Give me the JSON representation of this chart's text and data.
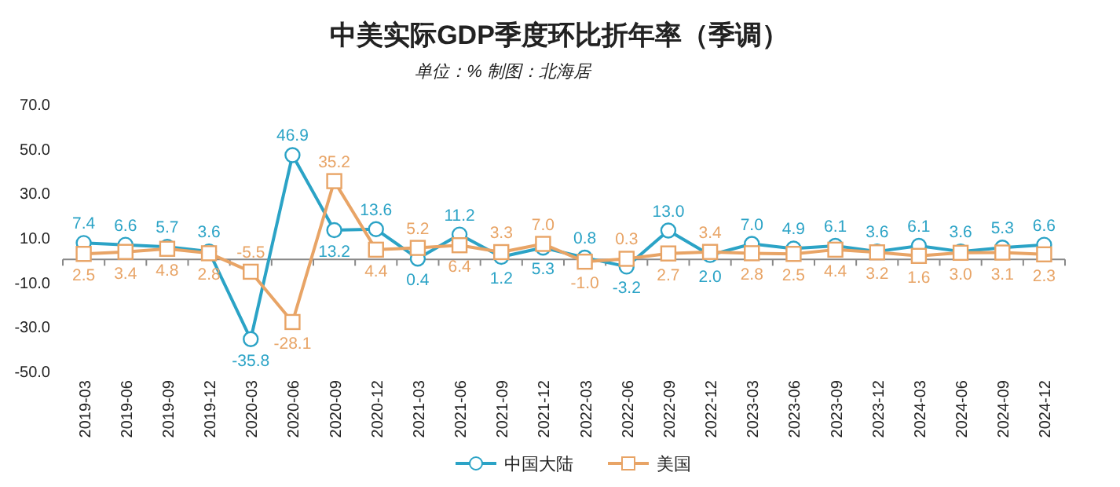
{
  "chart_data": {
    "type": "line",
    "title": "中美实际GDP季度环比折年率（季调）",
    "subtitle": "单位：% 制图：北海居",
    "categories": [
      "2019-03",
      "2019-06",
      "2019-09",
      "2019-12",
      "2020-03",
      "2020-06",
      "2020-09",
      "2020-12",
      "2021-03",
      "2021-06",
      "2021-09",
      "2021-12",
      "2022-03",
      "2022-06",
      "2022-09",
      "2022-12",
      "2023-03",
      "2023-06",
      "2023-09",
      "2023-12",
      "2024-03",
      "2024-06",
      "2024-09",
      "2024-12"
    ],
    "series": [
      {
        "name": "中国大陆",
        "color": "#2ba3c6",
        "marker": "circle",
        "values": [
          7.4,
          6.6,
          5.7,
          3.6,
          -35.8,
          46.9,
          13.2,
          13.6,
          0.4,
          11.2,
          1.2,
          5.3,
          0.8,
          -3.2,
          13.0,
          2.0,
          7.0,
          4.9,
          6.1,
          3.6,
          6.1,
          3.6,
          5.3,
          6.6
        ],
        "value_labels": [
          "7.4",
          "6.6",
          "5.7",
          "3.6",
          "-35.8",
          "46.9",
          "13.2",
          "13.6",
          "0.4",
          "11.2",
          "1.2",
          "5.3",
          "0.8",
          "-3.2",
          "13.0",
          "2.0",
          "7.0",
          "4.9",
          "6.1",
          "3.6",
          "6.1",
          "3.6",
          "5.3",
          "6.6"
        ]
      },
      {
        "name": "美国",
        "color": "#e8a466",
        "marker": "square",
        "values": [
          2.5,
          3.4,
          4.8,
          2.8,
          -5.5,
          -28.1,
          35.2,
          4.4,
          5.2,
          6.4,
          3.3,
          7.0,
          -1.0,
          0.3,
          2.7,
          3.4,
          2.8,
          2.5,
          4.4,
          3.2,
          1.6,
          3.0,
          3.1,
          2.3
        ],
        "value_labels": [
          "2.5",
          "3.4",
          "4.8",
          "2.8",
          "-5.5",
          "-28.1",
          "35.2",
          "4.4",
          "5.2",
          "6.4",
          "3.3",
          "7.0",
          "-1.0",
          "0.3",
          "2.7",
          "3.4",
          "2.8",
          "2.5",
          "4.4",
          "3.2",
          "1.6",
          "3.0",
          "3.1",
          "2.3"
        ]
      }
    ],
    "ylim": [
      -50,
      70
    ],
    "yticks": [
      {
        "value": -50,
        "label": "-50.0"
      },
      {
        "value": -30,
        "label": "-30.0"
      },
      {
        "value": -10,
        "label": "-10.0"
      },
      {
        "value": 10,
        "label": "10.0"
      },
      {
        "value": 30,
        "label": "30.0"
      },
      {
        "value": 50,
        "label": "50.0"
      },
      {
        "value": 70,
        "label": "70.0"
      }
    ],
    "legend": "bottom",
    "grid": false,
    "line_style": "solid"
  }
}
